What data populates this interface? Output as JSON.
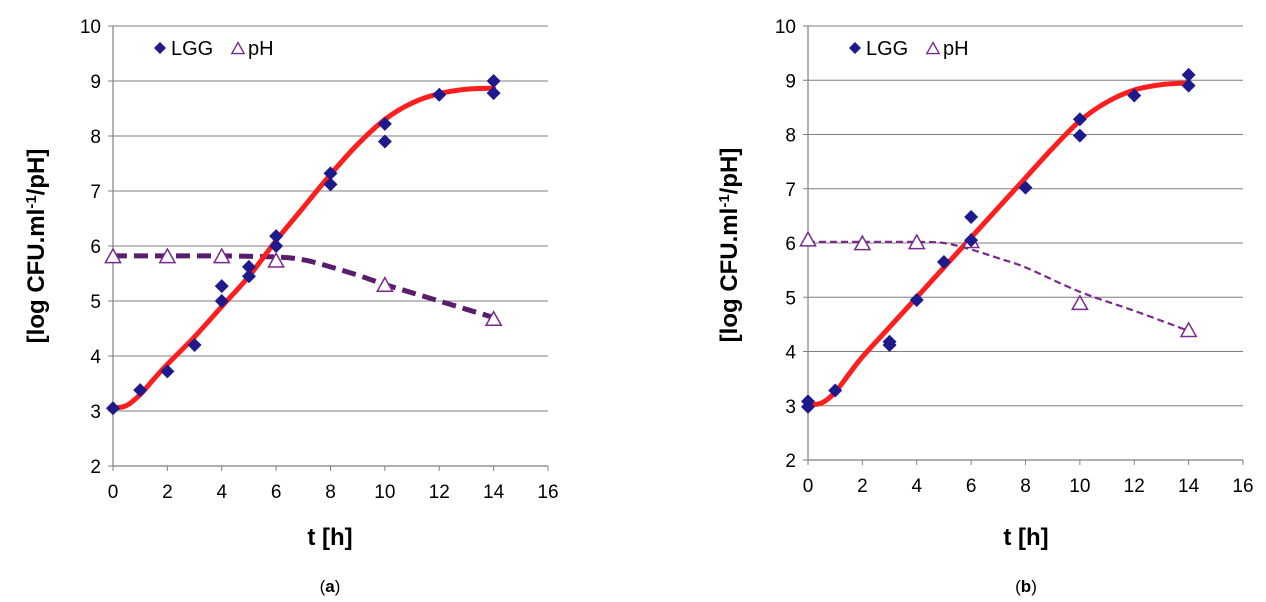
{
  "chart_data": [
    {
      "type": "scatter",
      "panel_label": "a",
      "xlabel": "t [h]",
      "ylabel_main": "[log CFU.ml",
      "ylabel_sup": "-1",
      "ylabel_end": "/pH]",
      "xlim": [
        0,
        16
      ],
      "ylim": [
        2,
        10
      ],
      "xticks": [
        0,
        2,
        4,
        6,
        8,
        10,
        12,
        14,
        16
      ],
      "yticks": [
        2,
        3,
        4,
        5,
        6,
        7,
        8,
        9,
        10
      ],
      "grid": "horizontal",
      "legend_position": "top-left",
      "colors": {
        "lgg": "#1f1a8c",
        "ph": "#7a2a8a",
        "fit": "#ff1e1e",
        "ph_fit": "#5a1d6e"
      },
      "series": [
        {
          "name": "LGG",
          "marker": "diamond",
          "x": [
            0,
            1,
            2,
            3,
            4,
            4,
            5,
            5,
            6,
            6,
            8,
            8,
            10,
            10,
            12,
            14,
            14
          ],
          "y": [
            3.05,
            3.38,
            3.72,
            4.2,
            5.0,
            5.27,
            5.45,
            5.62,
            6.0,
            6.18,
            7.12,
            7.32,
            7.9,
            8.22,
            8.75,
            8.78,
            9.0
          ]
        },
        {
          "name": "pH",
          "marker": "triangle-open",
          "x": [
            0,
            2,
            4,
            6,
            10,
            14
          ],
          "y": [
            5.8,
            5.8,
            5.8,
            5.72,
            5.28,
            4.66
          ]
        }
      ],
      "fit_lgg": {
        "x": [
          0,
          0.5,
          1,
          1.5,
          2,
          3,
          4,
          5,
          6,
          7,
          8,
          9,
          10,
          11,
          12,
          13,
          14
        ],
        "y": [
          3.05,
          3.1,
          3.3,
          3.58,
          3.85,
          4.35,
          4.9,
          5.45,
          6.1,
          6.7,
          7.3,
          7.85,
          8.3,
          8.6,
          8.77,
          8.85,
          8.87
        ]
      },
      "fit_ph": {
        "x": [
          0,
          2,
          4,
          6,
          7,
          8,
          9,
          10,
          11,
          12,
          13,
          14
        ],
        "y": [
          5.82,
          5.82,
          5.82,
          5.8,
          5.75,
          5.62,
          5.47,
          5.3,
          5.15,
          5.0,
          4.85,
          4.7
        ]
      }
    },
    {
      "type": "scatter",
      "panel_label": "b",
      "xlabel": "t [h]",
      "ylabel_main": "[log CFU.ml",
      "ylabel_sup": "-1",
      "ylabel_end": "/pH]",
      "xlim": [
        0,
        16
      ],
      "ylim": [
        2,
        10
      ],
      "xticks": [
        0,
        2,
        4,
        6,
        8,
        10,
        12,
        14,
        16
      ],
      "yticks": [
        2,
        3,
        4,
        5,
        6,
        7,
        8,
        9,
        10
      ],
      "grid": "horizontal",
      "legend_position": "top-left",
      "colors": {
        "lgg": "#1f1a8c",
        "ph": "#7a2a8a",
        "fit": "#ff1e1e",
        "ph_fit": "#7a2a8a"
      },
      "series": [
        {
          "name": "LGG",
          "marker": "diamond",
          "x": [
            0,
            0,
            1,
            3,
            3,
            4,
            5,
            6,
            6,
            8,
            10,
            10,
            12,
            14,
            14
          ],
          "y": [
            2.98,
            3.08,
            3.28,
            4.12,
            4.18,
            4.95,
            5.65,
            6.05,
            6.48,
            7.02,
            7.98,
            8.28,
            8.72,
            8.9,
            9.1
          ]
        },
        {
          "name": "pH",
          "marker": "triangle-open",
          "x": [
            0,
            2,
            4,
            6,
            10,
            14
          ],
          "y": [
            6.05,
            5.98,
            6.0,
            6.02,
            4.88,
            4.38
          ]
        }
      ],
      "fit_lgg": {
        "x": [
          0,
          0.5,
          1,
          1.5,
          2,
          3,
          4,
          5,
          6,
          7,
          8,
          9,
          10,
          11,
          12,
          13,
          14
        ],
        "y": [
          3.02,
          3.05,
          3.25,
          3.58,
          3.9,
          4.45,
          5.0,
          5.55,
          6.1,
          6.65,
          7.2,
          7.75,
          8.25,
          8.6,
          8.82,
          8.92,
          8.95
        ]
      },
      "fit_ph": {
        "x": [
          0,
          2,
          4,
          5,
          6,
          7,
          8,
          10,
          12,
          14
        ],
        "y": [
          6.02,
          6.02,
          6.02,
          6.0,
          5.88,
          5.72,
          5.55,
          5.1,
          4.75,
          4.38
        ]
      }
    }
  ]
}
